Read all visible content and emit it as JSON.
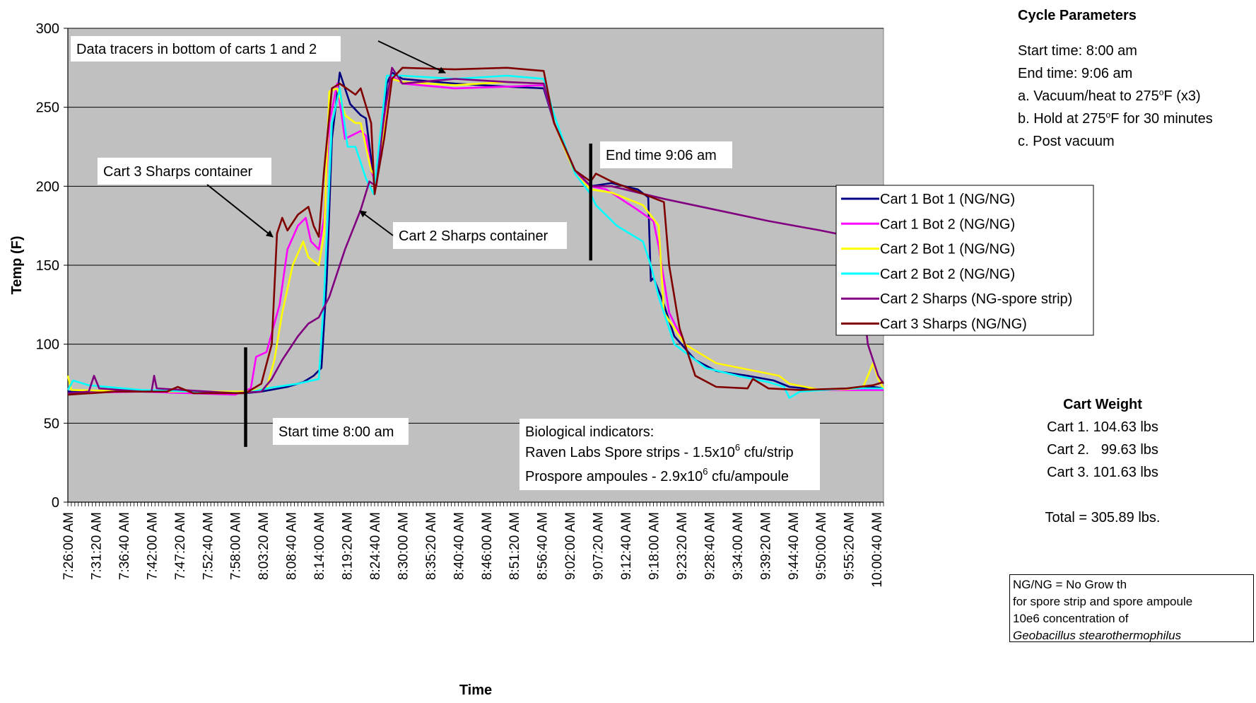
{
  "chart_data": {
    "type": "line",
    "xlabel": "Time",
    "ylabel": "Temp (F)",
    "ylim": [
      0,
      300
    ],
    "yticks": [
      0,
      50,
      100,
      150,
      200,
      250,
      300
    ],
    "x_range": [
      "7:26:00 AM",
      "10:02:00 AM"
    ],
    "x_ticks": [
      "7:26:00 AM",
      "7:31:20 AM",
      "7:36:40 AM",
      "7:42:00 AM",
      "7:47:20 AM",
      "7:52:40 AM",
      "7:58:00 AM",
      "8:03:20 AM",
      "8:08:40 AM",
      "8:14:00 AM",
      "8:19:20 AM",
      "8:24:40 AM",
      "8:30:00 AM",
      "8:35:20 AM",
      "8:40:40 AM",
      "8:46:00 AM",
      "8:51:20 AM",
      "8:56:40 AM",
      "9:02:00 AM",
      "9:07:20 AM",
      "9:12:40 AM",
      "9:18:00 AM",
      "9:23:20 AM",
      "9:28:40 AM",
      "9:34:00 AM",
      "9:39:20 AM",
      "9:44:40 AM",
      "9:50:00 AM",
      "9:55:20 AM",
      "10:00:40 AM"
    ],
    "grid": "horizontal",
    "legend_position": "right",
    "series": [
      {
        "name": "Cart 1 Bot 1 (NG/NG)",
        "color": "#000080",
        "points": [
          [
            "7:26:00",
            70
          ],
          [
            "7:40:00",
            70
          ],
          [
            "8:00:00",
            69
          ],
          [
            "8:03:00",
            70
          ],
          [
            "8:08:00",
            73
          ],
          [
            "8:11:00",
            76
          ],
          [
            "8:13:00",
            80
          ],
          [
            "8:14:30",
            85
          ],
          [
            "8:15:30",
            140
          ],
          [
            "8:16:30",
            230
          ],
          [
            "8:18:00",
            272
          ],
          [
            "8:20:00",
            252
          ],
          [
            "8:22:00",
            245
          ],
          [
            "8:23:00",
            243
          ],
          [
            "8:24:40",
            200
          ],
          [
            "8:26:00",
            220
          ],
          [
            "8:27:00",
            265
          ],
          [
            "8:28:00",
            272
          ],
          [
            "8:30:00",
            268
          ],
          [
            "8:40:00",
            265
          ],
          [
            "8:50:00",
            263
          ],
          [
            "8:57:00",
            262
          ],
          [
            "8:59:00",
            240
          ],
          [
            "9:03:00",
            210
          ],
          [
            "9:06:00",
            200
          ],
          [
            "9:10:00",
            202
          ],
          [
            "9:15:00",
            198
          ],
          [
            "9:17:00",
            193
          ],
          [
            "9:17:30",
            140
          ],
          [
            "9:18:00",
            142
          ],
          [
            "9:19:30",
            130
          ],
          [
            "9:22:00",
            105
          ],
          [
            "9:26:00",
            90
          ],
          [
            "9:30:00",
            83
          ],
          [
            "9:36:00",
            80
          ],
          [
            "9:41:00",
            77
          ],
          [
            "9:44:00",
            73
          ],
          [
            "9:50:00",
            71
          ],
          [
            "9:58:00",
            72
          ],
          [
            "10:00:00",
            73
          ],
          [
            "10:02:00",
            72
          ]
        ]
      },
      {
        "name": "Cart 1 Bot 2 (NG/NG)",
        "color": "#ff00ff",
        "points": [
          [
            "7:26:00",
            69
          ],
          [
            "7:40:00",
            70
          ],
          [
            "7:58:00",
            68
          ],
          [
            "8:01:00",
            72
          ],
          [
            "8:02:00",
            92
          ],
          [
            "8:04:00",
            95
          ],
          [
            "8:06:30",
            125
          ],
          [
            "8:08:00",
            160
          ],
          [
            "8:10:00",
            175
          ],
          [
            "8:11:30",
            180
          ],
          [
            "8:12:30",
            165
          ],
          [
            "8:14:00",
            160
          ],
          [
            "8:15:00",
            180
          ],
          [
            "8:16:00",
            240
          ],
          [
            "8:17:30",
            265
          ],
          [
            "8:19:00",
            230
          ],
          [
            "8:22:00",
            235
          ],
          [
            "8:23:00",
            232
          ],
          [
            "8:24:00",
            210
          ],
          [
            "8:25:00",
            200
          ],
          [
            "8:26:30",
            240
          ],
          [
            "8:28:00",
            270
          ],
          [
            "8:30:00",
            265
          ],
          [
            "8:40:00",
            262
          ],
          [
            "8:50:00",
            263
          ],
          [
            "8:57:00",
            264
          ],
          [
            "8:59:00",
            240
          ],
          [
            "9:03:00",
            208
          ],
          [
            "9:06:00",
            200
          ],
          [
            "9:09:00",
            198
          ],
          [
            "9:15:00",
            185
          ],
          [
            "9:18:00",
            178
          ],
          [
            "9:19:00",
            162
          ],
          [
            "9:21:00",
            120
          ],
          [
            "9:24:00",
            100
          ],
          [
            "9:30:00",
            88
          ],
          [
            "9:36:00",
            84
          ],
          [
            "9:42:00",
            80
          ],
          [
            "9:44:00",
            75
          ],
          [
            "9:50:00",
            71
          ],
          [
            "10:02:00",
            71
          ]
        ]
      },
      {
        "name": "Cart 2 Bot 1 (NG/NG)",
        "color": "#ffff00",
        "points": [
          [
            "7:26:00",
            80
          ],
          [
            "7:26:40",
            71
          ],
          [
            "7:40:00",
            70
          ],
          [
            "8:00:00",
            70
          ],
          [
            "8:04:00",
            72
          ],
          [
            "8:05:30",
            90
          ],
          [
            "8:07:00",
            120
          ],
          [
            "8:09:00",
            150
          ],
          [
            "8:11:00",
            165
          ],
          [
            "8:12:00",
            155
          ],
          [
            "8:14:00",
            150
          ],
          [
            "8:15:00",
            170
          ],
          [
            "8:16:00",
            260
          ],
          [
            "8:17:30",
            262
          ],
          [
            "8:19:00",
            245
          ],
          [
            "8:21:00",
            240
          ],
          [
            "8:22:00",
            240
          ],
          [
            "8:24:00",
            210
          ],
          [
            "8:25:00",
            205
          ],
          [
            "8:26:30",
            235
          ],
          [
            "8:28:00",
            268
          ],
          [
            "8:30:00",
            266
          ],
          [
            "8:40:00",
            264
          ],
          [
            "8:50:00",
            266
          ],
          [
            "8:57:00",
            265
          ],
          [
            "8:59:00",
            240
          ],
          [
            "9:03:00",
            208
          ],
          [
            "9:06:00",
            198
          ],
          [
            "9:10:00",
            196
          ],
          [
            "9:16:00",
            188
          ],
          [
            "9:19:00",
            175
          ],
          [
            "9:20:00",
            120
          ],
          [
            "9:24:00",
            100
          ],
          [
            "9:30:00",
            88
          ],
          [
            "9:36:00",
            84
          ],
          [
            "9:42:00",
            80
          ],
          [
            "9:44:00",
            75
          ],
          [
            "9:50:00",
            71
          ],
          [
            "9:58:00",
            72
          ],
          [
            "10:00:00",
            88
          ],
          [
            "10:01:00",
            78
          ],
          [
            "10:02:00",
            72
          ]
        ]
      },
      {
        "name": "Cart 2 Bot 2 (NG/NG)",
        "color": "#00ffff",
        "points": [
          [
            "7:26:00",
            71
          ],
          [
            "7:27:00",
            77
          ],
          [
            "7:30:00",
            74
          ],
          [
            "7:40:00",
            71
          ],
          [
            "8:00:00",
            69
          ],
          [
            "8:04:00",
            72
          ],
          [
            "8:10:00",
            75
          ],
          [
            "8:14:00",
            78
          ],
          [
            "8:15:00",
            130
          ],
          [
            "8:16:30",
            240
          ],
          [
            "8:18:00",
            262
          ],
          [
            "8:19:30",
            225
          ],
          [
            "8:21:00",
            225
          ],
          [
            "8:23:00",
            205
          ],
          [
            "8:24:30",
            195
          ],
          [
            "8:25:30",
            225
          ],
          [
            "8:27:00",
            270
          ],
          [
            "8:30:00",
            270
          ],
          [
            "8:40:00",
            268
          ],
          [
            "8:50:00",
            270
          ],
          [
            "8:57:00",
            268
          ],
          [
            "8:59:00",
            245
          ],
          [
            "9:03:00",
            208
          ],
          [
            "9:06:00",
            195
          ],
          [
            "9:07:00",
            188
          ],
          [
            "9:11:00",
            175
          ],
          [
            "9:16:00",
            165
          ],
          [
            "9:17:30",
            150
          ],
          [
            "9:19:00",
            130
          ],
          [
            "9:22:00",
            100
          ],
          [
            "9:28:00",
            85
          ],
          [
            "9:34:00",
            80
          ],
          [
            "9:40:00",
            76
          ],
          [
            "9:43:00",
            73
          ],
          [
            "9:44:00",
            66
          ],
          [
            "9:46:00",
            70
          ],
          [
            "9:55:00",
            72
          ],
          [
            "10:02:00",
            72
          ]
        ]
      },
      {
        "name": "Cart 2 Sharps (NG-spore strip)",
        "color": "#800080",
        "points": [
          [
            "7:26:00",
            69
          ],
          [
            "7:30:00",
            70
          ],
          [
            "7:31:00",
            80
          ],
          [
            "7:32:00",
            72
          ],
          [
            "7:40:00",
            70
          ],
          [
            "7:42:00",
            70
          ],
          [
            "7:42:30",
            80
          ],
          [
            "7:43:00",
            72
          ],
          [
            "7:58:00",
            69
          ],
          [
            "8:03:00",
            70
          ],
          [
            "8:05:00",
            78
          ],
          [
            "8:07:00",
            90
          ],
          [
            "8:10:00",
            105
          ],
          [
            "8:12:00",
            113
          ],
          [
            "8:14:00",
            117
          ],
          [
            "8:16:00",
            130
          ],
          [
            "8:19:00",
            160
          ],
          [
            "8:22:00",
            185
          ],
          [
            "8:23:40",
            203
          ],
          [
            "8:25:00",
            200
          ],
          [
            "8:26:30",
            245
          ],
          [
            "8:28:00",
            275
          ],
          [
            "8:30:00",
            265
          ],
          [
            "8:40:00",
            268
          ],
          [
            "8:50:00",
            266
          ],
          [
            "8:57:00",
            265
          ],
          [
            "8:59:00",
            240
          ],
          [
            "9:03:00",
            210
          ],
          [
            "9:06:00",
            200
          ],
          [
            "9:10:00",
            200
          ],
          [
            "9:20:00",
            192
          ],
          [
            "9:30:00",
            185
          ],
          [
            "9:40:00",
            178
          ],
          [
            "9:50:00",
            172
          ],
          [
            "9:56:00",
            168
          ],
          [
            "9:57:00",
            160
          ],
          [
            "9:59:00",
            100
          ],
          [
            "10:01:00",
            80
          ],
          [
            "10:02:00",
            75
          ]
        ]
      },
      {
        "name": "Cart 3 Sharps (NG/NG)",
        "color": "#800000",
        "points": [
          [
            "7:26:00",
            68
          ],
          [
            "7:35:00",
            70
          ],
          [
            "7:45:00",
            70
          ],
          [
            "7:47:00",
            73
          ],
          [
            "7:50:00",
            69
          ],
          [
            "8:00:00",
            69
          ],
          [
            "8:03:00",
            75
          ],
          [
            "8:05:00",
            100
          ],
          [
            "8:06:00",
            170
          ],
          [
            "8:07:00",
            180
          ],
          [
            "8:08:00",
            172
          ],
          [
            "8:10:00",
            182
          ],
          [
            "8:12:00",
            187
          ],
          [
            "8:13:00",
            175
          ],
          [
            "8:14:00",
            168
          ],
          [
            "8:15:00",
            210
          ],
          [
            "8:16:30",
            262
          ],
          [
            "8:18:00",
            265
          ],
          [
            "8:21:00",
            258
          ],
          [
            "8:22:00",
            262
          ],
          [
            "8:24:00",
            240
          ],
          [
            "8:24:40",
            195
          ],
          [
            "8:26:30",
            230
          ],
          [
            "8:28:00",
            268
          ],
          [
            "8:30:00",
            275
          ],
          [
            "8:40:00",
            274
          ],
          [
            "8:50:00",
            275
          ],
          [
            "8:57:00",
            273
          ],
          [
            "8:59:00",
            240
          ],
          [
            "9:03:00",
            210
          ],
          [
            "9:06:00",
            203
          ],
          [
            "9:07:00",
            208
          ],
          [
            "9:10:00",
            203
          ],
          [
            "9:20:00",
            190
          ],
          [
            "9:21:00",
            150
          ],
          [
            "9:23:00",
            110
          ],
          [
            "9:26:00",
            80
          ],
          [
            "9:30:00",
            73
          ],
          [
            "9:36:00",
            72
          ],
          [
            "9:37:00",
            78
          ],
          [
            "9:40:00",
            72
          ],
          [
            "9:46:00",
            71
          ],
          [
            "9:55:00",
            72
          ],
          [
            "10:00:00",
            74
          ],
          [
            "10:02:00",
            76
          ]
        ]
      }
    ],
    "markers": [
      {
        "x": "8:00:00",
        "y_from": 35,
        "y_to": 98
      },
      {
        "x": "9:06:00",
        "y_from": 153,
        "y_to": 227
      }
    ],
    "annotations": [
      {
        "text": "Data tracers in bottom of carts 1 and 2"
      },
      {
        "text": "Cart 3 Sharps container"
      },
      {
        "text": "Cart 2 Sharps container"
      },
      {
        "text": "End time 9:06 am"
      },
      {
        "text": "Start time 8:00 am"
      }
    ],
    "bio_box": {
      "line1": "Biological indicators:",
      "line2_pre": "Raven Labs Spore strips - 1.5x10",
      "line2_sup": "6",
      "line2_post": " cfu/strip",
      "line3_pre": "Prospore ampoules - 2.9x10",
      "line3_sup": "6",
      "line3_post": " cfu/ampoule"
    }
  },
  "cycle_parameters": {
    "title": "Cycle Parameters",
    "start": "Start time: 8:00 am",
    "end": "End time:  9:06 am",
    "a_pre": "a. Vacuum/heat to 275",
    "a_sup": "o",
    "a_post": "F (x3)",
    "b_pre": "b. Hold at 275",
    "b_sup": "o",
    "b_post": "F for 30 minutes",
    "c": "c. Post vacuum"
  },
  "cart_weight": {
    "title": "Cart Weight",
    "cart1": "Cart 1. 104.63 lbs",
    "cart2": "Cart 2.   99.63 lbs",
    "cart3": "Cart 3. 101.63 lbs",
    "total": "Total = 305.89 lbs."
  },
  "note": {
    "line1": "NG/NG = No Grow th",
    "line2": "for spore strip and spore ampoule",
    "line3": "10e6 concentration of",
    "line4": "Geobacillus stearothermophilus"
  }
}
